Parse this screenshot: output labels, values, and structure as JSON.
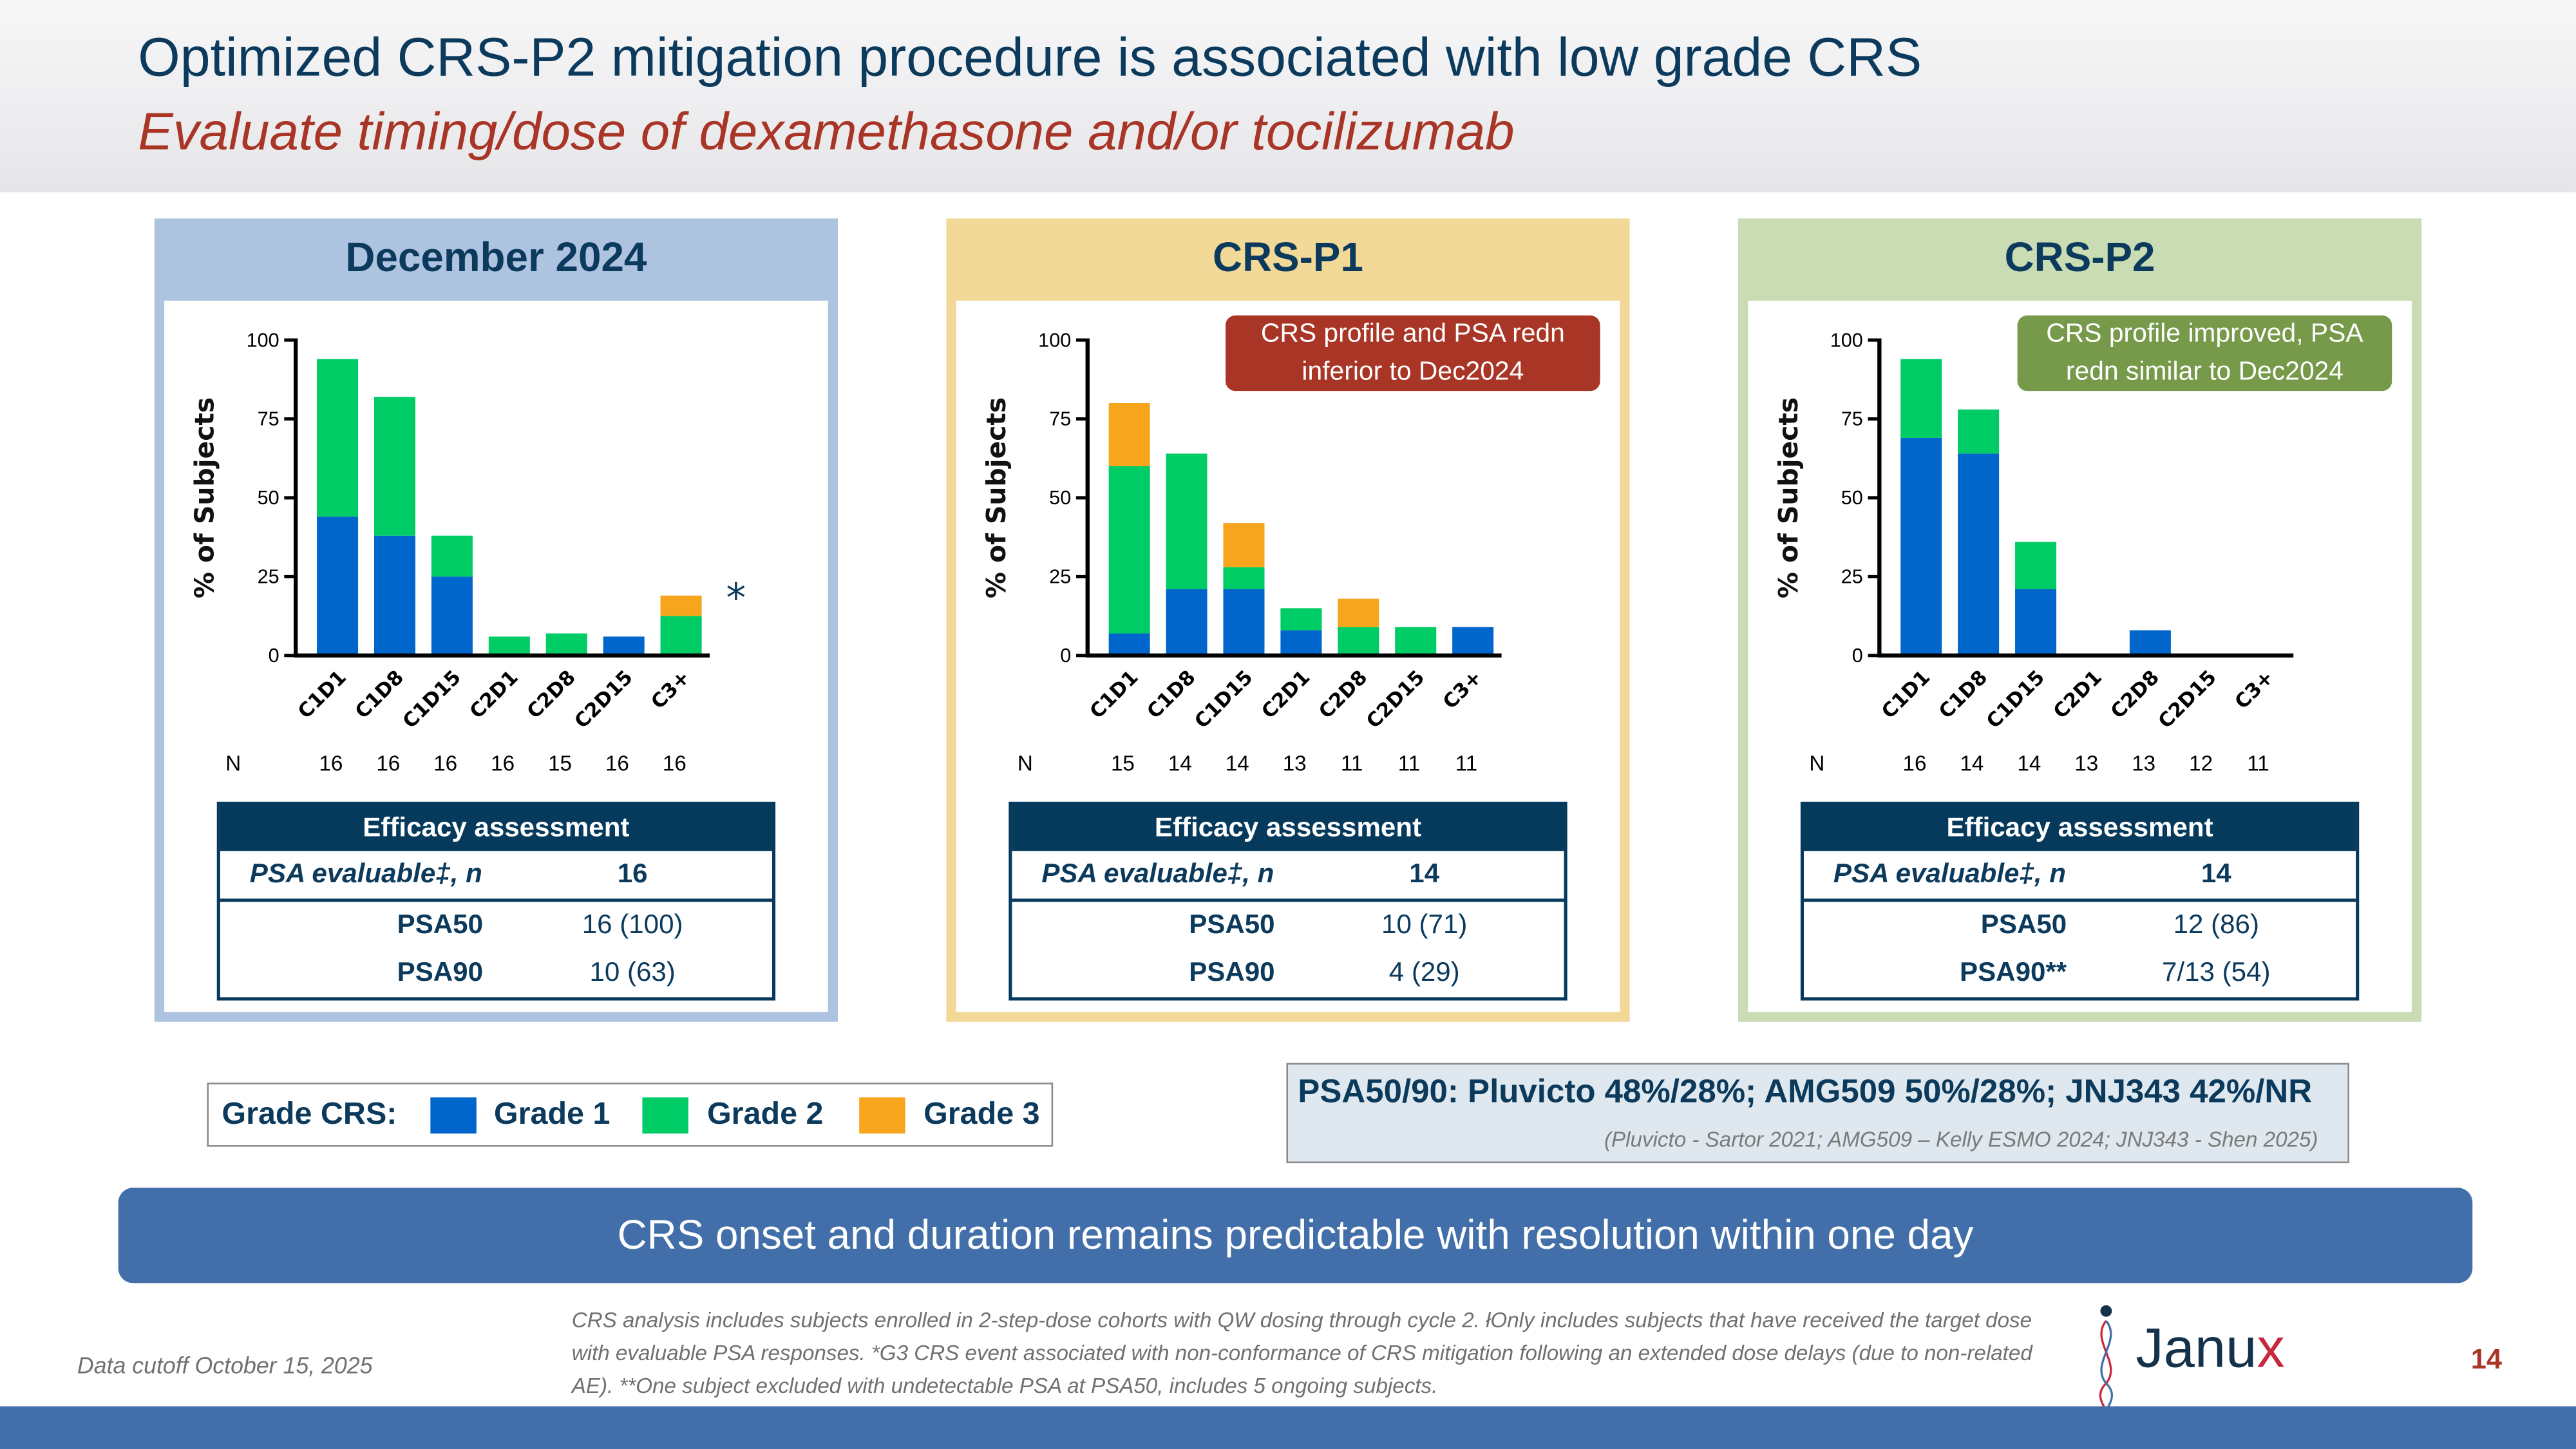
{
  "header": {
    "title": "Optimized CRS-P2 mitigation procedure is associated with low grade CRS",
    "subtitle": "Evaluate timing/dose of dexamethasone and/or tocilizumab"
  },
  "colors": {
    "grade1": "#0066cc",
    "grade2": "#00cc66",
    "grade3": "#f7a51d",
    "navy": "#063a5c",
    "panel_dec": "#adc3e0",
    "panel_p1": "#f3d998",
    "panel_p2": "#c9dcb4",
    "callout_p1": "#a93526",
    "callout_p2": "#76994a"
  },
  "panels": [
    {
      "title": "December 2024",
      "callout": "",
      "asterisk": "*",
      "efficacy": {
        "header": "Efficacy assessment",
        "evaluable_label": "PSA evaluable‡, n",
        "evaluable_value": "16",
        "rows": [
          {
            "label": "PSA50",
            "value": "16 (100)"
          },
          {
            "label": "PSA90",
            "value": "10 (63)"
          }
        ]
      }
    },
    {
      "title": "CRS-P1",
      "callout": "CRS profile and PSA redn inferior to Dec2024",
      "asterisk": "",
      "efficacy": {
        "header": "Efficacy assessment",
        "evaluable_label": "PSA evaluable‡, n",
        "evaluable_value": "14",
        "rows": [
          {
            "label": "PSA50",
            "value": "10 (71)"
          },
          {
            "label": "PSA90",
            "value": "4 (29)"
          }
        ]
      }
    },
    {
      "title": "CRS-P2",
      "callout": "CRS profile improved, PSA redn similar to Dec2024",
      "asterisk": "",
      "efficacy": {
        "header": "Efficacy assessment",
        "evaluable_label": "PSA evaluable‡, n",
        "evaluable_value": "14",
        "rows": [
          {
            "label": "PSA50",
            "value": "12 (86)"
          },
          {
            "label": "PSA90**",
            "value": "7/13 (54)"
          }
        ]
      }
    }
  ],
  "chart_data": [
    {
      "type": "bar",
      "stacked": true,
      "title": "December 2024",
      "ylabel": "% of Subjects",
      "xlabel": "",
      "ylim": [
        0,
        100
      ],
      "yticks": [
        0,
        25,
        50,
        75,
        100
      ],
      "categories": [
        "C1D1",
        "C1D8",
        "C1D15",
        "C2D1",
        "C2D8",
        "C2D15",
        "C3+"
      ],
      "n_label": "N",
      "n": [
        "16",
        "16",
        "16",
        "16",
        "15",
        "16",
        "16"
      ],
      "series": [
        {
          "name": "Grade 1",
          "values": [
            44,
            38,
            25,
            0,
            0,
            6,
            0
          ]
        },
        {
          "name": "Grade 2",
          "values": [
            50,
            44,
            13,
            6,
            7,
            0,
            12.5
          ]
        },
        {
          "name": "Grade 3",
          "values": [
            0,
            0,
            0,
            0,
            0,
            0,
            6.5
          ]
        }
      ]
    },
    {
      "type": "bar",
      "stacked": true,
      "title": "CRS-P1",
      "ylabel": "% of Subjects",
      "xlabel": "",
      "ylim": [
        0,
        100
      ],
      "yticks": [
        0,
        25,
        50,
        75,
        100
      ],
      "categories": [
        "C1D1",
        "C1D8",
        "C1D15",
        "C2D1",
        "C2D8",
        "C2D15",
        "C3+"
      ],
      "n_label": "N",
      "n": [
        "15",
        "14",
        "14",
        "13",
        "11",
        "11",
        "11"
      ],
      "series": [
        {
          "name": "Grade 1",
          "values": [
            7,
            21,
            21,
            8,
            0,
            0,
            9
          ]
        },
        {
          "name": "Grade 2",
          "values": [
            53,
            43,
            7,
            7,
            9,
            9,
            0
          ]
        },
        {
          "name": "Grade 3",
          "values": [
            20,
            0,
            14,
            0,
            9,
            0,
            0
          ]
        }
      ]
    },
    {
      "type": "bar",
      "stacked": true,
      "title": "CRS-P2",
      "ylabel": "% of Subjects",
      "xlabel": "",
      "ylim": [
        0,
        100
      ],
      "yticks": [
        0,
        25,
        50,
        75,
        100
      ],
      "categories": [
        "C1D1",
        "C1D8",
        "C1D15",
        "C2D1",
        "C2D8",
        "C2D15",
        "C3+"
      ],
      "n_label": "N",
      "n": [
        "16",
        "14",
        "14",
        "13",
        "13",
        "12",
        "11"
      ],
      "series": [
        {
          "name": "Grade 1",
          "values": [
            69,
            64,
            21,
            0,
            8,
            0,
            0
          ]
        },
        {
          "name": "Grade 2",
          "values": [
            25,
            14,
            15,
            0,
            0,
            0,
            0
          ]
        },
        {
          "name": "Grade 3",
          "values": [
            0,
            0,
            0,
            0,
            0,
            0,
            0
          ]
        }
      ]
    }
  ],
  "legend": {
    "title": "Grade CRS:",
    "items": [
      "Grade 1",
      "Grade 2",
      "Grade 3"
    ]
  },
  "benchmark": {
    "text": "PSA50/90:   Pluvicto 48%/28%; AMG509 50%/28%; JNJ343 42%/NR",
    "reference": "(Pluvicto - Sartor 2021; AMG509 – Kelly ESMO 2024; JNJ343 - Shen 2025)"
  },
  "banner": "CRS onset and duration remains predictable with resolution within one day",
  "footer": {
    "cutoff": "Data cutoff October 15, 2025",
    "note": "CRS analysis includes subjects enrolled in 2-step-dose cohorts with QW dosing through cycle 2. łOnly includes subjects that have received the target dose with evaluable PSA responses. *G3 CRS event associated with non-conformance of CRS mitigation following an extended dose delays (due to non-related AE). **One subject excluded with undetectable PSA at PSA50, includes 5 ongoing subjects.",
    "logo": "Janux",
    "page_number": "14"
  }
}
